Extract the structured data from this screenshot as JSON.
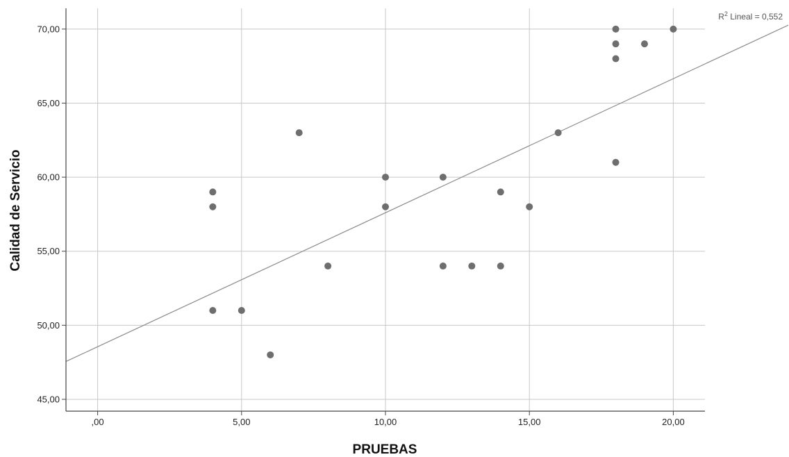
{
  "chart_data": {
    "type": "scatter",
    "xlabel": "PRUEBAS",
    "ylabel": "Calidad de Servicio",
    "xlim": [
      -1.1,
      21.1
    ],
    "ylim": [
      44.2,
      71.4
    ],
    "x_ticks": [
      0,
      5,
      10,
      15,
      20
    ],
    "x_tick_labels": [
      ",00",
      "5,00",
      "10,00",
      "15,00",
      "20,00"
    ],
    "y_ticks": [
      45,
      50,
      55,
      60,
      65,
      70
    ],
    "y_tick_labels": [
      "45,00",
      "50,00",
      "55,00",
      "60,00",
      "65,00",
      "70,00"
    ],
    "grid": true,
    "point_color": "#6e6e6e",
    "grid_color": "#c8c8c8",
    "fit_line_color": "#8c8c8c",
    "points": [
      {
        "x": 4,
        "y": 59
      },
      {
        "x": 4,
        "y": 58
      },
      {
        "x": 4,
        "y": 51
      },
      {
        "x": 5,
        "y": 51
      },
      {
        "x": 6,
        "y": 48
      },
      {
        "x": 7,
        "y": 63
      },
      {
        "x": 8,
        "y": 54
      },
      {
        "x": 10,
        "y": 60
      },
      {
        "x": 10,
        "y": 58
      },
      {
        "x": 12,
        "y": 60
      },
      {
        "x": 12,
        "y": 54
      },
      {
        "x": 13,
        "y": 54
      },
      {
        "x": 14,
        "y": 59
      },
      {
        "x": 14,
        "y": 54
      },
      {
        "x": 15,
        "y": 58
      },
      {
        "x": 16,
        "y": 63
      },
      {
        "x": 18,
        "y": 70
      },
      {
        "x": 18,
        "y": 69
      },
      {
        "x": 18,
        "y": 68
      },
      {
        "x": 18,
        "y": 61
      },
      {
        "x": 19,
        "y": 69
      },
      {
        "x": 20,
        "y": 70
      }
    ],
    "fit_line": {
      "intercept": 48.55,
      "slope": 0.905
    },
    "annotation": {
      "prefix": "R",
      "superscript": "2",
      "text": " Lineal = 0,552"
    }
  }
}
